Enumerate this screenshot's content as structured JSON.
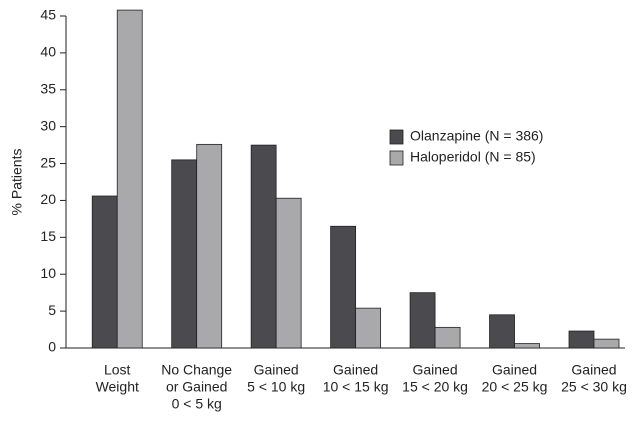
{
  "chart_data": {
    "type": "bar",
    "y_label": "% Patients",
    "categories": [
      [
        "Lost",
        "Weight"
      ],
      [
        "No Change",
        "or Gained",
        "0 < 5 kg"
      ],
      [
        "Gained",
        "5 < 10 kg"
      ],
      [
        "Gained",
        "10 < 15 kg"
      ],
      [
        "Gained",
        "15 < 20 kg"
      ],
      [
        "Gained",
        "20 < 25 kg"
      ],
      [
        "Gained",
        "25 < 30 kg"
      ]
    ],
    "series": [
      {
        "name": "Olanzapine (N = 386)",
        "color": "#4a4a4f",
        "values": [
          20.6,
          25.5,
          27.5,
          16.5,
          7.5,
          4.5,
          2.3
        ]
      },
      {
        "name": "Haloperidol (N = 85)",
        "color": "#a9a9ab",
        "values": [
          45.8,
          27.6,
          20.3,
          5.4,
          2.8,
          0.6,
          1.2
        ]
      }
    ],
    "ylim": [
      0,
      45
    ],
    "yticks": [
      0,
      5,
      10,
      15,
      20,
      25,
      30,
      35,
      40,
      45
    ],
    "grid": false,
    "legend": "right"
  }
}
